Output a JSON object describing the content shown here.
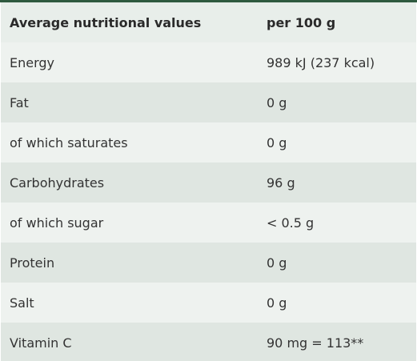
{
  "table": {
    "headers": [
      "Average nutritional values",
      "per 100 g"
    ],
    "rows": [
      {
        "label": "Energy",
        "value": "989 kJ (237 kcal)"
      },
      {
        "label": "Fat",
        "value": "0 g"
      },
      {
        "label": "of which saturates",
        "value": "0 g"
      },
      {
        "label": "Carbohydrates",
        "value": "96 g"
      },
      {
        "label": "of which sugar",
        "value": "< 0.5 g"
      },
      {
        "label": "Protein",
        "value": "0 g"
      },
      {
        "label": "Salt",
        "value": "0 g"
      },
      {
        "label": "Vitamin C",
        "value": "90 mg = 113**"
      }
    ]
  },
  "colors": {
    "top_border": "#2f5a3f",
    "header_bg": "#e8eeea",
    "row_light": "#eef2ef",
    "row_dark": "#dfe6e1"
  }
}
